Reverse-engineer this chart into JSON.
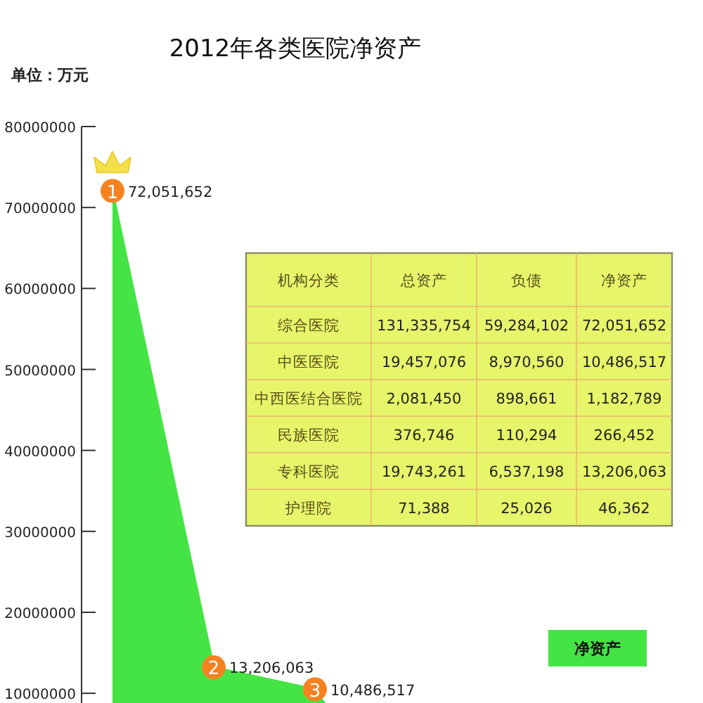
{
  "chart_data": [
    {
      "type": "area",
      "title": "2012年各类医院净资产",
      "annotations": [
        "单位：万元",
        "1",
        "2",
        "3"
      ],
      "categories": [
        null,
        null,
        null
      ],
      "series": [
        {
          "name": "净资产",
          "color": "#44e444",
          "values": [
            72051652,
            13206063,
            10486517
          ],
          "value_labels": [
            "72,051,652",
            "13,206,063",
            "10,486,517"
          ]
        }
      ],
      "ylim": [
        8800000,
        80000000
      ],
      "yticks": [
        10000000,
        20000000,
        30000000,
        40000000,
        50000000,
        60000000,
        70000000,
        80000000
      ],
      "tick_labels": "y",
      "legend": "bottom right",
      "marker": "circle",
      "grid": false
    },
    {
      "type": "other",
      "categories": [
        "机构分类",
        "总资产",
        "负债",
        "净资产"
      ],
      "y_categories": [
        "综合医院",
        "中医医院",
        "中西医结合医院",
        "民族医院",
        "专科医院",
        "护理院"
      ],
      "cell_labels": [
        [
          "131,335,754",
          "59,284,102",
          "72,051,652"
        ],
        [
          "19,457,076",
          "8,970,560",
          "10,486,517"
        ],
        [
          "2,081,450",
          "898,661",
          "1,182,789"
        ],
        [
          "376,746",
          "110,294",
          "266,452"
        ],
        [
          "19,743,261",
          "6,537,198",
          "13,206,063"
        ],
        [
          "71,388",
          "25,026",
          "46,362"
        ]
      ]
    }
  ]
}
